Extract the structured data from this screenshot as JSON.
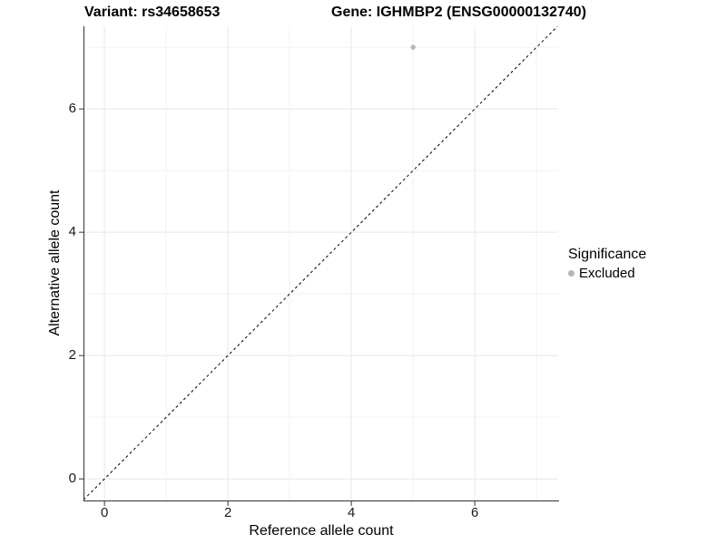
{
  "title": {
    "variant": "Variant: rs34658653",
    "gene": "Gene: IGHMBP2 (ENSG00000132740)"
  },
  "axes": {
    "x_label": "Reference allele count",
    "y_label": "Alternative allele count"
  },
  "legend": {
    "title": "Significance",
    "items": [
      {
        "label": "Excluded",
        "color": "#b5b5b5"
      }
    ]
  },
  "chart_data": {
    "type": "scatter",
    "title": "Variant: rs34658653 — Gene: IGHMBP2 (ENSG00000132740)",
    "xlabel": "Reference allele count",
    "ylabel": "Alternative allele count",
    "points": [
      {
        "x": 5,
        "y": 7,
        "series": "Excluded",
        "color": "#b5b5b5"
      }
    ],
    "series": [
      {
        "name": "Excluded",
        "color": "#b5b5b5",
        "points": [
          [
            5,
            7
          ]
        ]
      }
    ],
    "reference_line": {
      "equation": "y = x",
      "style": "dashed",
      "color": "#000000"
    },
    "xlim": [
      -0.34,
      7.35
    ],
    "ylim": [
      -0.35,
      7.34
    ],
    "x_ticks_major": [
      0,
      2,
      4,
      6
    ],
    "x_ticks_minor": [
      1,
      3,
      5,
      7
    ],
    "y_ticks_major": [
      0,
      2,
      4,
      6
    ],
    "y_ticks_minor": [
      1,
      3,
      5,
      7
    ],
    "grid": true,
    "legend_position": "right",
    "legend_title": "Significance",
    "colors": {
      "point": "#b5b5b5",
      "grid_major": "#e8e8e8",
      "grid_minor": "#f2f2f2",
      "axis": "#333333",
      "reference_line": "#000000",
      "background": "#ffffff"
    },
    "point_radius": 2.7
  }
}
